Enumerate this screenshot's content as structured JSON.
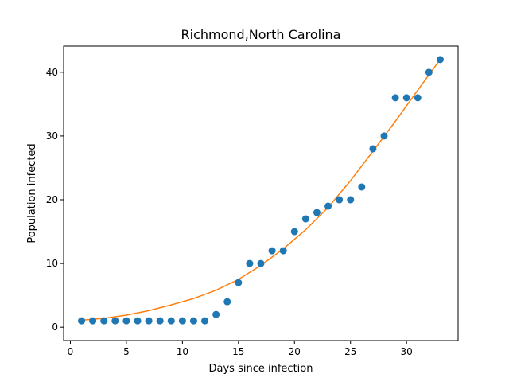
{
  "chart_data": {
    "type": "scatter",
    "title": "Richmond,North Carolina",
    "xlabel": "Days since infection",
    "ylabel": "Population infected",
    "xlim": [
      -0.6,
      34.6
    ],
    "ylim": [
      -2.1,
      44.1
    ],
    "x_ticks": [
      0,
      5,
      10,
      15,
      20,
      25,
      30
    ],
    "y_ticks": [
      0,
      10,
      20,
      30,
      40
    ],
    "grid": false,
    "series": [
      {
        "type": "scatter",
        "color": "#1f77b4",
        "x": [
          1,
          2,
          3,
          4,
          5,
          6,
          7,
          8,
          9,
          10,
          11,
          12,
          13,
          14,
          15,
          16,
          17,
          18,
          19,
          20,
          21,
          22,
          23,
          24,
          25,
          26,
          27,
          28,
          29,
          30,
          31,
          32,
          33
        ],
        "y": [
          1,
          1,
          1,
          1,
          1,
          1,
          1,
          1,
          1,
          1,
          1,
          1,
          2,
          4,
          7,
          10,
          10,
          12,
          12,
          15,
          17,
          18,
          19,
          20,
          20,
          22,
          28,
          30,
          36,
          36,
          36,
          40,
          42
        ]
      },
      {
        "type": "line",
        "color": "#ff7f0e",
        "x": [
          1,
          3,
          5,
          7,
          9,
          11,
          13,
          15,
          17,
          19,
          21,
          23,
          25,
          27,
          29,
          31,
          33
        ],
        "y": [
          1.1,
          1.4,
          1.9,
          2.6,
          3.5,
          4.5,
          5.8,
          7.5,
          9.7,
          12.3,
          15.3,
          18.8,
          23.0,
          27.6,
          32.3,
          37.2,
          42.0
        ]
      }
    ]
  }
}
